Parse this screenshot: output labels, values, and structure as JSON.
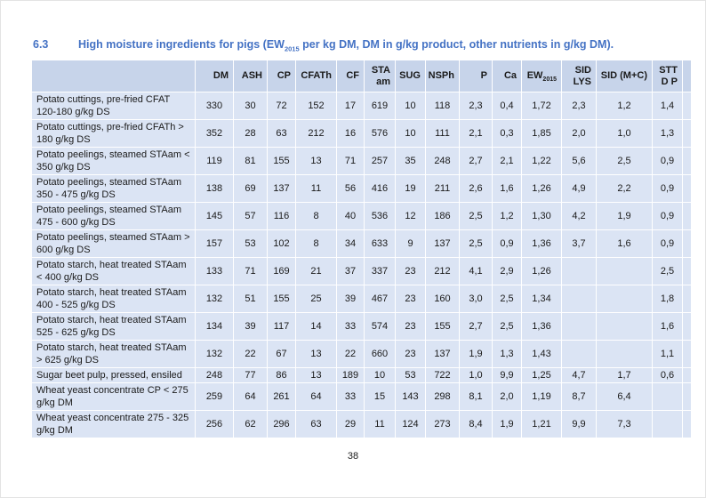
{
  "page": {
    "section_number": "6.3",
    "title": {
      "prefix": "High moisture ingredients for pigs (EW",
      "subscript": "2015",
      "suffix": " per kg DM, DM in g/kg product, other nutrients in g/kg DM)."
    },
    "page_number": "38"
  },
  "colors": {
    "title_blue": "#4472C4",
    "header_bg": "#C7D4EA",
    "row_bg": "#DBE4F4",
    "gridline": "#FFFFFF"
  },
  "table": {
    "columns": [
      {
        "id": "dm",
        "label": "DM"
      },
      {
        "id": "ash",
        "label": "ASH"
      },
      {
        "id": "cp",
        "label": "CP"
      },
      {
        "id": "cfath",
        "label": "CFATh"
      },
      {
        "id": "cf",
        "label": "CF"
      },
      {
        "id": "sta-am",
        "label": "STA\nam"
      },
      {
        "id": "sug",
        "label": "SUG"
      },
      {
        "id": "nsph",
        "label": "NSPh"
      },
      {
        "id": "p",
        "label": "P"
      },
      {
        "id": "ca",
        "label": "Ca"
      },
      {
        "id": "ew2015",
        "label": "EW",
        "sub": "2015"
      },
      {
        "id": "sid-lys",
        "label": "SID\nLYS"
      },
      {
        "id": "sid-mc",
        "label": "SID (M+C)"
      },
      {
        "id": "sttd-p",
        "label": "STT\nD P"
      }
    ],
    "rows": [
      {
        "name": "Potato cuttings, pre-fried CFAT 120-180 g/kg DS",
        "values": [
          "330",
          "30",
          "72",
          "152",
          "17",
          "619",
          "10",
          "118",
          "2,3",
          "0,4",
          "1,72",
          "2,3",
          "1,2",
          "1,4"
        ]
      },
      {
        "name": "Potato cuttings, pre-fried CFATh > 180 g/kg DS",
        "values": [
          "352",
          "28",
          "63",
          "212",
          "16",
          "576",
          "10",
          "111",
          "2,1",
          "0,3",
          "1,85",
          "2,0",
          "1,0",
          "1,3"
        ]
      },
      {
        "name": "Potato peelings, steamed STAam < 350 g/kg DS",
        "values": [
          "119",
          "81",
          "155",
          "13",
          "71",
          "257",
          "35",
          "248",
          "2,7",
          "2,1",
          "1,22",
          "5,6",
          "2,5",
          "0,9"
        ]
      },
      {
        "name": "Potato peelings, steamed STAam 350 - 475 g/kg DS",
        "values": [
          "138",
          "69",
          "137",
          "11",
          "56",
          "416",
          "19",
          "211",
          "2,6",
          "1,6",
          "1,26",
          "4,9",
          "2,2",
          "0,9"
        ]
      },
      {
        "name": "Potato peelings, steamed STAam 475 - 600 g/kg DS",
        "values": [
          "145",
          "57",
          "116",
          "8",
          "40",
          "536",
          "12",
          "186",
          "2,5",
          "1,2",
          "1,30",
          "4,2",
          "1,9",
          "0,9"
        ]
      },
      {
        "name": "Potato peelings, steamed STAam > 600 g/kg DS",
        "values": [
          "157",
          "53",
          "102",
          "8",
          "34",
          "633",
          "9",
          "137",
          "2,5",
          "0,9",
          "1,36",
          "3,7",
          "1,6",
          "0,9"
        ]
      },
      {
        "name": "Potato starch, heat treated STAam < 400 g/kg DS",
        "values": [
          "133",
          "71",
          "169",
          "21",
          "37",
          "337",
          "23",
          "212",
          "4,1",
          "2,9",
          "1,26",
          "",
          "",
          "2,5"
        ]
      },
      {
        "name": "Potato starch, heat treated STAam 400 - 525 g/kg DS",
        "values": [
          "132",
          "51",
          "155",
          "25",
          "39",
          "467",
          "23",
          "160",
          "3,0",
          "2,5",
          "1,34",
          "",
          "",
          "1,8"
        ]
      },
      {
        "name": "Potato starch, heat treated STAam 525 - 625 g/kg DS",
        "values": [
          "134",
          "39",
          "117",
          "14",
          "33",
          "574",
          "23",
          "155",
          "2,7",
          "2,5",
          "1,36",
          "",
          "",
          "1,6"
        ]
      },
      {
        "name": "Potato starch, heat treated STAam > 625 g/kg DS",
        "values": [
          "132",
          "22",
          "67",
          "13",
          "22",
          "660",
          "23",
          "137",
          "1,9",
          "1,3",
          "1,43",
          "",
          "",
          "1,1"
        ]
      },
      {
        "name": "Sugar beet pulp, pressed, ensiled",
        "values": [
          "248",
          "77",
          "86",
          "13",
          "189",
          "10",
          "53",
          "722",
          "1,0",
          "9,9",
          "1,25",
          "4,7",
          "1,7",
          "0,6"
        ]
      },
      {
        "name": "Wheat yeast concentrate CP < 275 g/kg DM",
        "values": [
          "259",
          "64",
          "261",
          "64",
          "33",
          "15",
          "143",
          "298",
          "8,1",
          "2,0",
          "1,19",
          "8,7",
          "6,4",
          ""
        ]
      },
      {
        "name": "Wheat yeast concentrate 275 - 325 g/kg DM",
        "values": [
          "256",
          "62",
          "296",
          "63",
          "29",
          "11",
          "124",
          "273",
          "8,4",
          "1,9",
          "1,21",
          "9,9",
          "7,3",
          ""
        ]
      }
    ]
  }
}
